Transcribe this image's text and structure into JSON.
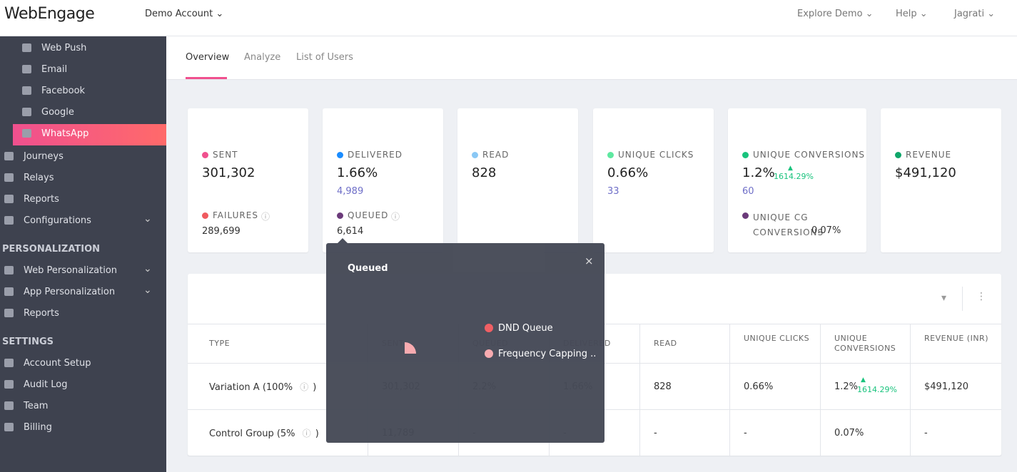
{
  "header": {
    "logo": "WebEngage",
    "account": "Demo Account",
    "nav": [
      "Explore Demo",
      "Help",
      "Jagrati"
    ]
  },
  "sidebar": {
    "channels": [
      "Web Push",
      "Email",
      "Facebook",
      "Google",
      "WhatsApp"
    ],
    "items": [
      "Journeys",
      "Relays",
      "Reports",
      "Configurations"
    ],
    "sections": [
      {
        "title": "PERSONALIZATION",
        "items": [
          "Web Personalization",
          "App Personalization",
          "Reports"
        ]
      },
      {
        "title": "SETTINGS",
        "items": [
          "Account Setup",
          "Audit Log",
          "Team",
          "Billing"
        ]
      }
    ]
  },
  "tabs": [
    "Overview",
    "Analyze",
    "List of Users"
  ],
  "cards": [
    {
      "label": "SENT",
      "value": "301,302",
      "secondary_label": "FAILURES",
      "secondary_value": "289,699"
    },
    {
      "label": "DELIVERED",
      "value": "1.66%",
      "sub": "4,989",
      "secondary_label": "QUEUED",
      "secondary_value": "6,614"
    },
    {
      "label": "READ",
      "value": "828"
    },
    {
      "label": "UNIQUE CLICKS",
      "value": "0.66%",
      "sub": "33"
    },
    {
      "label": "UNIQUE CONVERSIONS",
      "value": "1.2%",
      "change": "1614.29%",
      "sub": "60",
      "secondary_label": "UNIQUE CG CONVERSIONS",
      "secondary_value": "0.07%"
    },
    {
      "label": "REVENUE",
      "value": "$491,120"
    }
  ],
  "table": {
    "columns": [
      "TYPE",
      "SENT",
      "QUEUED",
      "DELIVERED",
      "READ",
      "UNIQUE CLICKS",
      "UNIQUE CONVERSIONS",
      "REVENUE (INR)"
    ],
    "rows": [
      {
        "type": "Variation A (100%",
        "type_close": ")",
        "cells": [
          "301,302",
          "2.2%",
          "1.66%",
          "828",
          "0.66%",
          "1.2%",
          "$491,120"
        ],
        "change": "1614.29%"
      },
      {
        "type": "Control Group (5%",
        "type_close": ")",
        "cells": [
          "11,789",
          "-",
          "-",
          "-",
          "-",
          "0.07%",
          "-"
        ]
      }
    ]
  },
  "popup": {
    "title": "Queued",
    "legend": [
      "DND Queue",
      "Frequency Capping .."
    ]
  }
}
